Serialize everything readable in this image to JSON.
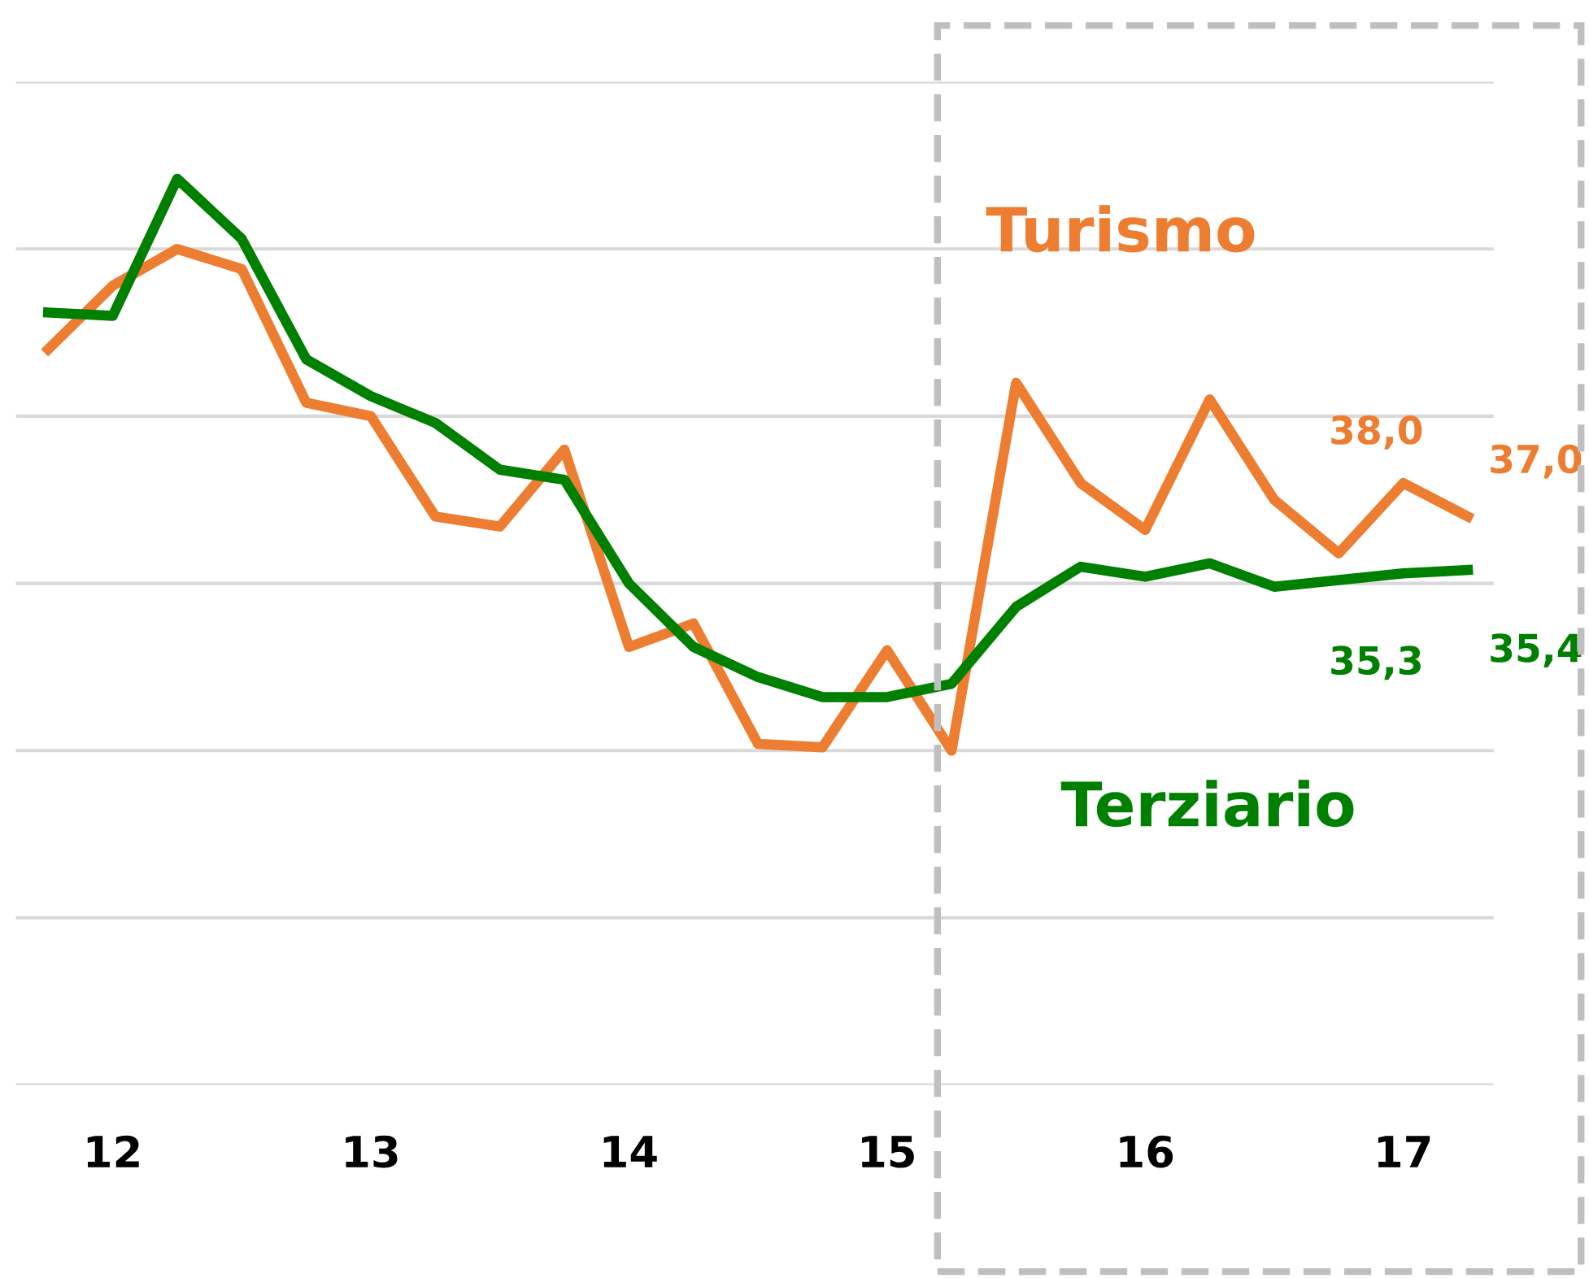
{
  "chart_data": {
    "type": "line",
    "categories": [
      null,
      "12",
      null,
      null,
      null,
      "13",
      null,
      null,
      null,
      "14",
      null,
      null,
      null,
      "15",
      null,
      null,
      null,
      "16",
      null,
      null,
      null,
      "17",
      null
    ],
    "series": [
      {
        "name": "Turismo",
        "color": "#ed7d31",
        "values": [
          42.0,
          43.9,
          45.0,
          44.4,
          40.4,
          40.0,
          37.0,
          36.7,
          39.0,
          33.1,
          33.8,
          30.2,
          30.1,
          33.0,
          30.0,
          41.0,
          38.0,
          36.6,
          40.5,
          37.5,
          35.9,
          38.0,
          37.0
        ],
        "value_labels": [
          null,
          null,
          null,
          null,
          null,
          null,
          null,
          null,
          null,
          null,
          null,
          null,
          null,
          null,
          null,
          null,
          null,
          null,
          null,
          null,
          null,
          "38,0",
          "37,0"
        ]
      },
      {
        "name": "Terziario",
        "color": "#008000",
        "values": [
          43.1,
          43.0,
          47.1,
          45.3,
          41.7,
          40.6,
          39.8,
          38.4,
          38.1,
          35.0,
          33.1,
          32.2,
          31.6,
          31.6,
          32.0,
          34.3,
          35.5,
          35.2,
          35.6,
          34.9,
          35.1,
          35.3,
          35.4
        ],
        "value_labels": [
          null,
          null,
          null,
          null,
          null,
          null,
          null,
          null,
          null,
          null,
          null,
          null,
          null,
          null,
          null,
          null,
          null,
          null,
          null,
          null,
          null,
          "35,3",
          "35,4"
        ]
      }
    ],
    "ylim": [
      20,
      50
    ],
    "yticks": [
      {
        "value": 20,
        "label": null
      },
      {
        "value": 25,
        "label": null
      },
      {
        "value": 30,
        "label": null
      },
      {
        "value": 35,
        "label": null
      },
      {
        "value": 40,
        "label": null
      },
      {
        "value": 45,
        "label": null
      },
      {
        "value": 50,
        "label": null
      }
    ],
    "tick_labels": "x",
    "grid": "y",
    "legend": false,
    "marker": "none",
    "line_style": "solid"
  }
}
